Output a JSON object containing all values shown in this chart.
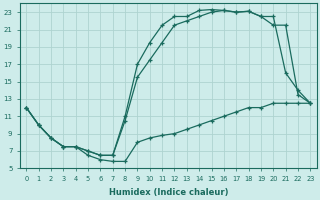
{
  "background_color": "#ceecea",
  "grid_color": "#aed4d0",
  "line_color": "#1a6b5e",
  "xlim": [
    -0.5,
    23.5
  ],
  "ylim": [
    5,
    24
  ],
  "xticks": [
    0,
    1,
    2,
    3,
    4,
    5,
    6,
    7,
    8,
    9,
    10,
    11,
    12,
    13,
    14,
    15,
    16,
    17,
    18,
    19,
    20,
    21,
    22,
    23
  ],
  "yticks": [
    5,
    7,
    9,
    11,
    13,
    15,
    17,
    19,
    21,
    23
  ],
  "xlabel": "Humidex (Indice chaleur)",
  "series": [
    {
      "x": [
        0,
        1,
        2,
        3,
        4,
        5,
        6,
        7,
        8,
        9,
        10,
        11,
        12,
        13,
        14,
        15,
        16,
        17,
        18,
        19,
        20,
        21,
        22,
        23
      ],
      "y": [
        12,
        10,
        8.5,
        7.5,
        7.5,
        7.0,
        6.5,
        6.5,
        11,
        17,
        19.5,
        21.5,
        22.5,
        22.5,
        23.2,
        23.3,
        23.2,
        23.0,
        23.1,
        22.5,
        22.5,
        16.0,
        14.0,
        12.5
      ]
    },
    {
      "x": [
        0,
        1,
        2,
        3,
        4,
        5,
        6,
        7,
        8,
        9,
        10,
        11,
        12,
        13,
        14,
        15,
        16,
        17,
        18,
        19,
        20,
        21,
        22,
        23
      ],
      "y": [
        12,
        10,
        8.5,
        7.5,
        7.5,
        7.0,
        6.5,
        6.5,
        10.5,
        15.5,
        17.5,
        19.5,
        21.5,
        22.0,
        22.5,
        23.0,
        23.2,
        23.0,
        23.1,
        22.5,
        21.5,
        21.5,
        13.5,
        12.5
      ]
    },
    {
      "x": [
        0,
        1,
        2,
        3,
        4,
        5,
        6,
        7,
        8,
        9,
        10,
        11,
        12,
        13,
        14,
        15,
        16,
        17,
        18,
        19,
        20,
        21,
        22,
        23
      ],
      "y": [
        12,
        10,
        8.5,
        7.5,
        7.5,
        6.5,
        6.0,
        5.8,
        5.8,
        8.0,
        8.5,
        8.8,
        9.0,
        9.5,
        10.0,
        10.5,
        11.0,
        11.5,
        12.0,
        12.0,
        12.5,
        12.5,
        12.5,
        12.5
      ]
    }
  ]
}
